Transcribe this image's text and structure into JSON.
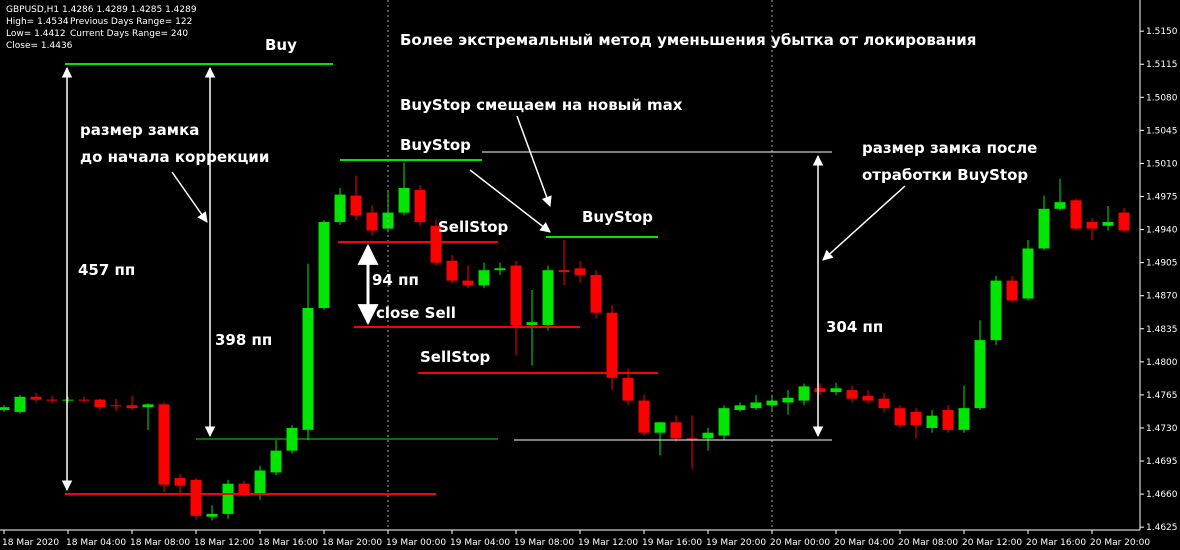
{
  "chart_data": {
    "type": "candlestick",
    "info": [
      "GBPUSD,H1  1.4286 1.4289 1.4285 1.4289",
      "High= 1.4534",
      "Previous Days Range= 122",
      "Low= 1.4412",
      "Current Days Range= 240",
      "Close= 1.4436"
    ],
    "annotations": [
      "Buy",
      "Более экстремальный метод уменьшения убытка от локирования",
      "BuyStop смещаем на новый max",
      "размер замка",
      "до начала коррекции",
      "BuyStop",
      "размер замка после",
      "отработки BuyStop",
      "BuyStop",
      "SellStop",
      "457 пп",
      "94 пп",
      "close Sell",
      "398 пп",
      "304 пп",
      "SellStop"
    ],
    "up_color": "#00e600",
    "down_color": "#ff0000",
    "open": [
      1.4749,
      1.4747,
      1.4763,
      1.476,
      1.476,
      1.476,
      1.476,
      1.4754,
      1.4754,
      1.4752,
      1.4755,
      1.4677,
      1.4675,
      1.4636,
      1.4639,
      1.4671,
      1.466,
      1.4683,
      1.4706,
      1.4728,
      1.4857,
      1.4948,
      1.4976,
      1.4958,
      1.4941,
      1.4958,
      1.4982,
      1.4944,
      1.4907,
      1.4886,
      1.4881,
      1.4897,
      1.4902,
      1.4839,
      1.4839,
      1.4897,
      1.4899,
      1.4892,
      1.4852,
      1.4783,
      1.4759,
      1.4725,
      1.4736,
      1.4719,
      1.4719,
      1.4722,
      1.4749,
      1.4751,
      1.4754,
      1.4757,
      1.4759,
      1.4772,
      1.4768,
      1.477,
      1.4764,
      1.4761,
      1.4751,
      1.4747,
      1.473,
      1.4749,
      1.4728,
      1.4751,
      1.4823,
      1.4886,
      1.4867,
      1.492,
      1.4962,
      1.4971,
      1.4948,
      1.4944,
      1.4958
    ],
    "high": [
      1.4754,
      1.4765,
      1.4767,
      1.4764,
      1.4763,
      1.4763,
      1.4761,
      1.4761,
      1.4764,
      1.4756,
      1.4757,
      1.4681,
      1.4677,
      1.4648,
      1.4675,
      1.4674,
      1.469,
      1.4717,
      1.4733,
      1.4904,
      1.495,
      1.4984,
      1.4997,
      1.4966,
      1.4982,
      1.5011,
      1.4987,
      1.495,
      1.4913,
      1.4902,
      1.4905,
      1.4905,
      1.4907,
      1.4876,
      1.4902,
      1.4929,
      1.4907,
      1.4897,
      1.486,
      1.4793,
      1.4765,
      1.4736,
      1.4743,
      1.4743,
      1.473,
      1.4754,
      1.4757,
      1.4765,
      1.4765,
      1.477,
      1.4777,
      1.4777,
      1.4778,
      1.4775,
      1.477,
      1.4767,
      1.4754,
      1.4751,
      1.4749,
      1.4754,
      1.4775,
      1.4844,
      1.4891,
      1.4891,
      1.4929,
      1.4976,
      1.4994,
      1.4973,
      1.4952,
      1.4965,
      1.4963
    ],
    "low": [
      1.4747,
      1.4745,
      1.4757,
      1.4756,
      1.4757,
      1.4757,
      1.4749,
      1.4748,
      1.4749,
      1.4728,
      1.4662,
      1.4657,
      1.4633,
      1.4632,
      1.4634,
      1.4657,
      1.4654,
      1.468,
      1.4703,
      1.4717,
      1.4855,
      1.4945,
      1.495,
      1.4934,
      1.4937,
      1.4955,
      1.4944,
      1.4902,
      1.4883,
      1.4878,
      1.4878,
      1.4892,
      1.4807,
      1.4796,
      1.4833,
      1.4881,
      1.4884,
      1.4846,
      1.477,
      1.4754,
      1.4722,
      1.4701,
      1.4715,
      1.4687,
      1.4706,
      1.4717,
      1.4747,
      1.4749,
      1.4749,
      1.4744,
      1.4754,
      1.4765,
      1.4765,
      1.4757,
      1.4756,
      1.4747,
      1.473,
      1.4719,
      1.4725,
      1.4725,
      1.4725,
      1.4749,
      1.4818,
      1.4863,
      1.4865,
      1.4918,
      1.496,
      1.4939,
      1.4929,
      1.4939,
      1.4937
    ],
    "close": [
      1.4752,
      1.4763,
      1.476,
      1.4759,
      1.476,
      1.4759,
      1.4752,
      1.4753,
      1.4751,
      1.4755,
      1.467,
      1.4669,
      1.4637,
      1.4639,
      1.4671,
      1.466,
      1.4685,
      1.4706,
      1.473,
      1.4857,
      1.4948,
      1.4977,
      1.4955,
      1.4939,
      1.4958,
      1.4984,
      1.4948,
      1.4905,
      1.4886,
      1.4881,
      1.4897,
      1.4899,
      1.4839,
      1.4842,
      1.4897,
      1.4895,
      1.4892,
      1.4852,
      1.4783,
      1.4759,
      1.4725,
      1.4736,
      1.4719,
      1.4717,
      1.4725,
      1.4751,
      1.4754,
      1.4757,
      1.4759,
      1.4762,
      1.4774,
      1.4768,
      1.4772,
      1.4761,
      1.4759,
      1.4751,
      1.4733,
      1.4733,
      1.4743,
      1.4728,
      1.4751,
      1.4823,
      1.4886,
      1.4865,
      1.492,
      1.4962,
      1.4969,
      1.4941,
      1.4941,
      1.4948,
      1.4939
    ],
    "xlim": [
      -0.25,
      71
    ],
    "xticks": [
      {
        "value": 0,
        "label": "18 Mar 2020"
      },
      {
        "value": 4,
        "label": "18 Mar 04:00"
      },
      {
        "value": 8,
        "label": "18 Mar 08:00"
      },
      {
        "value": 12,
        "label": "18 Mar 12:00"
      },
      {
        "value": 16,
        "label": "18 Mar 16:00"
      },
      {
        "value": 20,
        "label": "18 Mar 20:00"
      },
      {
        "value": 24,
        "label": "19 Mar 00:00"
      },
      {
        "value": 28,
        "label": "19 Mar 04:00"
      },
      {
        "value": 32,
        "label": "19 Mar 08:00"
      },
      {
        "value": 36,
        "label": "19 Mar 12:00"
      },
      {
        "value": 40,
        "label": "19 Mar 16:00"
      },
      {
        "value": 44,
        "label": "19 Mar 20:00"
      },
      {
        "value": 48,
        "label": "20 Mar 00:00"
      },
      {
        "value": 52,
        "label": "20 Mar 04:00"
      },
      {
        "value": 56,
        "label": "20 Mar 08:00"
      },
      {
        "value": 60,
        "label": "20 Mar 12:00"
      },
      {
        "value": 64,
        "label": "20 Mar 16:00"
      },
      {
        "value": 68,
        "label": "20 Mar 20:00"
      }
    ],
    "ylim": [
      1.4622,
      1.5183
    ],
    "yticks": [
      {
        "value": 1.515,
        "label": "1.5150"
      },
      {
        "value": 1.5115,
        "label": "1.5115"
      },
      {
        "value": 1.508,
        "label": "1.5080"
      },
      {
        "value": 1.5045,
        "label": "1.5045"
      },
      {
        "value": 1.501,
        "label": "1.5010"
      },
      {
        "value": 1.4975,
        "label": "1.4975"
      },
      {
        "value": 1.494,
        "label": "1.4940"
      },
      {
        "value": 1.4905,
        "label": "1.4905"
      },
      {
        "value": 1.487,
        "label": "1.4870"
      },
      {
        "value": 1.4835,
        "label": "1.4835"
      },
      {
        "value": 1.48,
        "label": "1.4800"
      },
      {
        "value": 1.4765,
        "label": "1.4765"
      },
      {
        "value": 1.473,
        "label": "1.4730"
      },
      {
        "value": 1.4695,
        "label": "1.4695"
      },
      {
        "value": 1.466,
        "label": "1.4660"
      },
      {
        "value": 1.4625,
        "label": "1.4625"
      }
    ]
  }
}
